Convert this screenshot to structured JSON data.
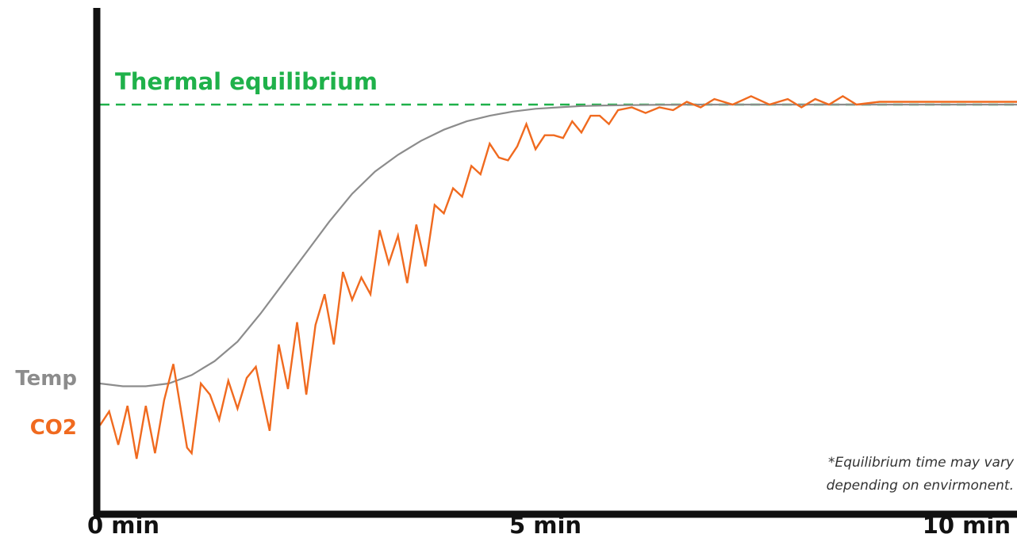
{
  "colors": {
    "axis": "#111111",
    "equilibrium": "#1fb14a",
    "temp": "#8c8c8c",
    "co2": "#f06a1f"
  },
  "chart_data": {
    "type": "line",
    "title": "",
    "xlabel": "",
    "ylabel": "",
    "x_unit": "min",
    "xlim": [
      0,
      10
    ],
    "x_ticks": [
      "0 min",
      "5 min",
      "10 min"
    ],
    "grid": false,
    "y_scale": "relative level (0 = Temp start, 1 = Thermal equilibrium)",
    "ylim": [
      -0.35,
      1.8
    ],
    "equilibrium": {
      "label": "Thermal equilibrium",
      "value": 1.0,
      "style": "dashed"
    },
    "series": [
      {
        "name": "Temp",
        "x": [
          0,
          0.25,
          0.5,
          0.75,
          1.0,
          1.25,
          1.5,
          1.75,
          2.0,
          2.25,
          2.5,
          2.75,
          3.0,
          3.25,
          3.5,
          3.75,
          4.0,
          4.25,
          4.5,
          4.75,
          5.0,
          5.25,
          5.5,
          5.75,
          6.0,
          6.5,
          7.0,
          7.5,
          8.0,
          8.5,
          9.0,
          9.5,
          10.0
        ],
        "values": [
          0.0,
          -0.01,
          -0.01,
          0.0,
          0.03,
          0.08,
          0.15,
          0.25,
          0.36,
          0.47,
          0.58,
          0.68,
          0.76,
          0.82,
          0.87,
          0.91,
          0.94,
          0.96,
          0.975,
          0.985,
          0.99,
          0.995,
          0.997,
          0.998,
          0.999,
          1.0,
          1.0,
          1.0,
          1.0,
          1.0,
          1.0,
          1.0,
          1.0
        ]
      },
      {
        "name": "CO2",
        "x": [
          0,
          0.1,
          0.2,
          0.3,
          0.4,
          0.5,
          0.6,
          0.7,
          0.8,
          0.95,
          1.0,
          1.1,
          1.2,
          1.3,
          1.4,
          1.5,
          1.6,
          1.7,
          1.85,
          1.95,
          2.05,
          2.15,
          2.25,
          2.35,
          2.45,
          2.55,
          2.65,
          2.75,
          2.85,
          2.95,
          3.05,
          3.15,
          3.25,
          3.35,
          3.45,
          3.55,
          3.65,
          3.75,
          3.85,
          3.95,
          4.05,
          4.15,
          4.25,
          4.35,
          4.45,
          4.55,
          4.65,
          4.75,
          4.85,
          4.95,
          5.05,
          5.15,
          5.25,
          5.35,
          5.45,
          5.55,
          5.65,
          5.8,
          5.95,
          6.1,
          6.25,
          6.4,
          6.55,
          6.7,
          6.9,
          7.1,
          7.3,
          7.5,
          7.65,
          7.8,
          7.95,
          8.1,
          8.25,
          8.5,
          9.0,
          9.5,
          10.0
        ],
        "values": [
          -0.15,
          -0.1,
          -0.22,
          -0.08,
          -0.27,
          -0.08,
          -0.25,
          -0.06,
          0.07,
          -0.23,
          -0.25,
          0.0,
          -0.04,
          -0.13,
          0.01,
          -0.09,
          0.02,
          0.06,
          -0.17,
          0.14,
          -0.02,
          0.22,
          -0.04,
          0.21,
          0.32,
          0.14,
          0.4,
          0.3,
          0.38,
          0.32,
          0.55,
          0.43,
          0.53,
          0.36,
          0.57,
          0.42,
          0.64,
          0.61,
          0.7,
          0.67,
          0.78,
          0.75,
          0.86,
          0.81,
          0.8,
          0.85,
          0.93,
          0.84,
          0.89,
          0.89,
          0.88,
          0.94,
          0.9,
          0.96,
          0.96,
          0.93,
          0.98,
          0.99,
          0.97,
          0.99,
          0.98,
          1.01,
          0.99,
          1.02,
          1.0,
          1.03,
          1.0,
          1.02,
          0.99,
          1.02,
          1.0,
          1.03,
          1.0,
          1.01,
          1.01,
          1.01,
          1.01
        ]
      }
    ]
  },
  "labels": {
    "equilibrium": "Thermal equilibrium",
    "temp": "Temp",
    "co2": "CO2",
    "tick_0": "0 min",
    "tick_5": "5 min",
    "tick_10": "10 min",
    "note_line1": "*Equilibrium time may vary",
    "note_line2": "depending on envirmonent."
  }
}
